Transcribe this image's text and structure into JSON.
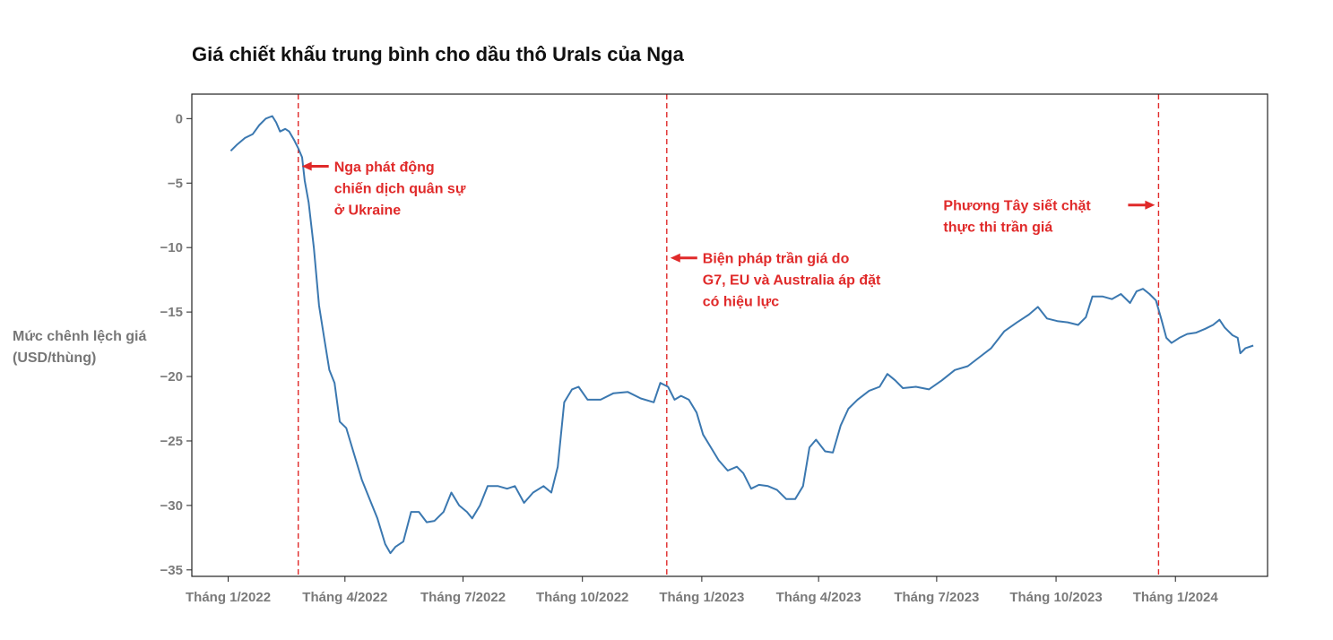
{
  "chart_data": {
    "type": "line",
    "title": "Giá chiết khấu trung bình cho dầu thô Urals của Nga",
    "ylabel_lines": [
      "Mức chênh lệch giá",
      "(USD/thùng)"
    ],
    "xlabel": "",
    "ylim": [
      -35.5,
      1.9
    ],
    "yticks": [
      0,
      -5,
      -10,
      -15,
      -20,
      -25,
      -30,
      -35
    ],
    "xlim": [
      "2021-12-04",
      "2024-03-12"
    ],
    "xticks": [
      {
        "date": "2022-01-01",
        "label": "Tháng 1/2022"
      },
      {
        "date": "2022-04-01",
        "label": "Tháng 4/2022"
      },
      {
        "date": "2022-07-01",
        "label": "Tháng 7/2022"
      },
      {
        "date": "2022-10-01",
        "label": "Tháng 10/2022"
      },
      {
        "date": "2023-01-01",
        "label": "Tháng 1/2023"
      },
      {
        "date": "2023-04-01",
        "label": "Tháng 4/2023"
      },
      {
        "date": "2023-07-01",
        "label": "Tháng 7/2023"
      },
      {
        "date": "2023-10-01",
        "label": "Tháng 10/2023"
      },
      {
        "date": "2024-01-01",
        "label": "Tháng 1/2024"
      }
    ],
    "grid": false,
    "series": [
      {
        "color": "#3b78b0",
        "points": [
          [
            "2022-01-03",
            -2.5
          ],
          [
            "2022-01-08",
            -2.0
          ],
          [
            "2022-01-14",
            -1.5
          ],
          [
            "2022-01-20",
            -1.2
          ],
          [
            "2022-01-25",
            -0.5
          ],
          [
            "2022-01-30",
            0.0
          ],
          [
            "2022-02-04",
            0.2
          ],
          [
            "2022-02-07",
            -0.3
          ],
          [
            "2022-02-10",
            -1.0
          ],
          [
            "2022-02-14",
            -0.8
          ],
          [
            "2022-02-17",
            -1.0
          ],
          [
            "2022-02-21",
            -1.7
          ],
          [
            "2022-02-24",
            -2.3
          ],
          [
            "2022-02-27",
            -3.0
          ],
          [
            "2022-03-01",
            -4.8
          ],
          [
            "2022-03-04",
            -6.5
          ],
          [
            "2022-03-08",
            -10.0
          ],
          [
            "2022-03-12",
            -14.5
          ],
          [
            "2022-03-16",
            -17.0
          ],
          [
            "2022-03-20",
            -19.5
          ],
          [
            "2022-03-24",
            -20.5
          ],
          [
            "2022-03-28",
            -23.5
          ],
          [
            "2022-04-02",
            -24.0
          ],
          [
            "2022-04-08",
            -26.0
          ],
          [
            "2022-04-14",
            -28.0
          ],
          [
            "2022-04-20",
            -29.5
          ],
          [
            "2022-04-26",
            -31.0
          ],
          [
            "2022-05-02",
            -33.0
          ],
          [
            "2022-05-06",
            -33.7
          ],
          [
            "2022-05-10",
            -33.2
          ],
          [
            "2022-05-16",
            -32.8
          ],
          [
            "2022-05-22",
            -30.5
          ],
          [
            "2022-05-28",
            -30.5
          ],
          [
            "2022-06-03",
            -31.3
          ],
          [
            "2022-06-09",
            -31.2
          ],
          [
            "2022-06-16",
            -30.5
          ],
          [
            "2022-06-22",
            -29.0
          ],
          [
            "2022-06-28",
            -30.0
          ],
          [
            "2022-07-04",
            -30.5
          ],
          [
            "2022-07-08",
            -31.0
          ],
          [
            "2022-07-14",
            -30.0
          ],
          [
            "2022-07-20",
            -28.5
          ],
          [
            "2022-07-28",
            -28.5
          ],
          [
            "2022-08-04",
            -28.7
          ],
          [
            "2022-08-10",
            -28.5
          ],
          [
            "2022-08-17",
            -29.8
          ],
          [
            "2022-08-24",
            -29.0
          ],
          [
            "2022-09-01",
            -28.5
          ],
          [
            "2022-09-07",
            -29.0
          ],
          [
            "2022-09-12",
            -27.0
          ],
          [
            "2022-09-17",
            -22.0
          ],
          [
            "2022-09-23",
            -21.0
          ],
          [
            "2022-09-28",
            -20.8
          ],
          [
            "2022-10-05",
            -21.8
          ],
          [
            "2022-10-15",
            -21.8
          ],
          [
            "2022-10-25",
            -21.3
          ],
          [
            "2022-11-05",
            -21.2
          ],
          [
            "2022-11-15",
            -21.7
          ],
          [
            "2022-11-25",
            -22.0
          ],
          [
            "2022-11-30",
            -20.5
          ],
          [
            "2022-12-06",
            -20.8
          ],
          [
            "2022-12-11",
            -21.8
          ],
          [
            "2022-12-16",
            -21.5
          ],
          [
            "2022-12-22",
            -21.8
          ],
          [
            "2022-12-28",
            -22.8
          ],
          [
            "2023-01-02",
            -24.5
          ],
          [
            "2023-01-08",
            -25.5
          ],
          [
            "2023-01-14",
            -26.5
          ],
          [
            "2023-01-21",
            -27.3
          ],
          [
            "2023-01-28",
            -27.0
          ],
          [
            "2023-02-02",
            -27.5
          ],
          [
            "2023-02-08",
            -28.7
          ],
          [
            "2023-02-14",
            -28.4
          ],
          [
            "2023-02-21",
            -28.5
          ],
          [
            "2023-02-28",
            -28.8
          ],
          [
            "2023-03-07",
            -29.5
          ],
          [
            "2023-03-14",
            -29.5
          ],
          [
            "2023-03-20",
            -28.5
          ],
          [
            "2023-03-25",
            -25.5
          ],
          [
            "2023-03-30",
            -24.9
          ],
          [
            "2023-04-06",
            -25.8
          ],
          [
            "2023-04-12",
            -25.9
          ],
          [
            "2023-04-18",
            -23.8
          ],
          [
            "2023-04-24",
            -22.5
          ],
          [
            "2023-05-01",
            -21.8
          ],
          [
            "2023-05-10",
            -21.1
          ],
          [
            "2023-05-18",
            -20.8
          ],
          [
            "2023-05-24",
            -19.8
          ],
          [
            "2023-05-30",
            -20.3
          ],
          [
            "2023-06-05",
            -20.9
          ],
          [
            "2023-06-15",
            -20.8
          ],
          [
            "2023-06-25",
            -21.0
          ],
          [
            "2023-07-05",
            -20.3
          ],
          [
            "2023-07-15",
            -19.5
          ],
          [
            "2023-07-25",
            -19.2
          ],
          [
            "2023-08-03",
            -18.5
          ],
          [
            "2023-08-12",
            -17.8
          ],
          [
            "2023-08-22",
            -16.5
          ],
          [
            "2023-09-01",
            -15.8
          ],
          [
            "2023-09-10",
            -15.2
          ],
          [
            "2023-09-17",
            -14.6
          ],
          [
            "2023-09-24",
            -15.5
          ],
          [
            "2023-10-02",
            -15.7
          ],
          [
            "2023-10-10",
            -15.8
          ],
          [
            "2023-10-18",
            -16.0
          ],
          [
            "2023-10-24",
            -15.4
          ],
          [
            "2023-10-29",
            -13.8
          ],
          [
            "2023-11-06",
            -13.8
          ],
          [
            "2023-11-13",
            -14.0
          ],
          [
            "2023-11-20",
            -13.6
          ],
          [
            "2023-11-27",
            -14.3
          ],
          [
            "2023-12-02",
            -13.4
          ],
          [
            "2023-12-07",
            -13.2
          ],
          [
            "2023-12-12",
            -13.6
          ],
          [
            "2023-12-17",
            -14.1
          ],
          [
            "2023-12-21",
            -15.5
          ],
          [
            "2023-12-25",
            -17.0
          ],
          [
            "2023-12-29",
            -17.4
          ],
          [
            "2024-01-04",
            -17.0
          ],
          [
            "2024-01-10",
            -16.7
          ],
          [
            "2024-01-17",
            -16.6
          ],
          [
            "2024-01-24",
            -16.3
          ],
          [
            "2024-01-30",
            -16.0
          ],
          [
            "2024-02-04",
            -15.6
          ],
          [
            "2024-02-08",
            -16.2
          ],
          [
            "2024-02-14",
            -16.8
          ],
          [
            "2024-02-18",
            -17.0
          ],
          [
            "2024-02-20",
            -18.2
          ],
          [
            "2024-02-24",
            -17.8
          ],
          [
            "2024-03-01",
            -17.6
          ]
        ]
      }
    ],
    "events": [
      {
        "date": "2022-02-24",
        "lines": [
          "Nga phát động",
          "chiến dịch quân sự",
          "ở Ukraine"
        ],
        "arrow_y": -3.7,
        "side": "right"
      },
      {
        "date": "2022-12-05",
        "lines": [
          "Biện pháp trần giá do",
          "G7, EU và Australia áp đặt",
          "có hiệu lực"
        ],
        "arrow_y": -10.8,
        "side": "right"
      },
      {
        "date": "2023-12-19",
        "lines": [
          "Phương Tây siết chặt",
          "thực thi trần giá"
        ],
        "arrow_y": -6.7,
        "side": "left"
      }
    ],
    "colors": {
      "line": "#3b78b0",
      "event": "#e02a2a"
    }
  }
}
